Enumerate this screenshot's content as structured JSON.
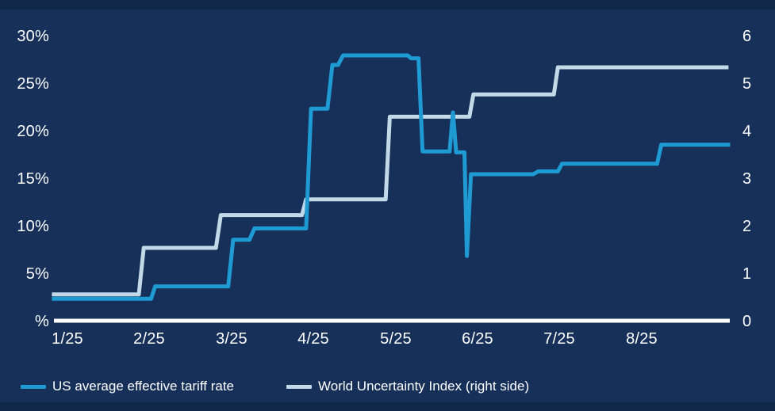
{
  "chart_data": {
    "type": "line",
    "style": "step-lines, dual y-axis, dark navy background",
    "x_axis": {
      "ticks": [
        "1/25",
        "2/25",
        "3/25",
        "4/25",
        "5/25",
        "6/25",
        "7/25",
        "8/25"
      ],
      "tick_month_positions": [
        1,
        2,
        3,
        4,
        5,
        6,
        7,
        8
      ],
      "range_months": [
        0.78,
        9.1
      ]
    },
    "left_axis": {
      "unit": "%",
      "ticks": [
        {
          "label": "30%",
          "value": 30
        },
        {
          "label": "25%",
          "value": 25
        },
        {
          "label": "20%",
          "value": 20
        },
        {
          "label": "15%",
          "value": 15
        },
        {
          "label": "10%",
          "value": 10
        },
        {
          "label": "5%",
          "value": 5
        },
        {
          "label": "%",
          "value": 0
        }
      ],
      "range": [
        0,
        30
      ]
    },
    "right_axis": {
      "ticks": [
        {
          "label": "6",
          "value": 6
        },
        {
          "label": "5",
          "value": 5
        },
        {
          "label": "4",
          "value": 4
        },
        {
          "label": "3",
          "value": 3
        },
        {
          "label": "2",
          "value": 2
        },
        {
          "label": "1",
          "value": 1
        },
        {
          "label": "0",
          "value": 0
        }
      ],
      "range": [
        0,
        6
      ]
    },
    "series": [
      {
        "name": "World Uncertainty Index (right side)",
        "axis": "right",
        "color": "#C3D9E8",
        "points": [
          [
            0.81,
            0.57
          ],
          [
            1.87,
            0.57
          ],
          [
            1.93,
            1.55
          ],
          [
            2.81,
            1.55
          ],
          [
            2.87,
            2.24
          ],
          [
            3.86,
            2.24
          ],
          [
            3.91,
            2.57
          ],
          [
            4.88,
            2.57
          ],
          [
            4.93,
            4.31
          ],
          [
            5.9,
            4.31
          ],
          [
            5.95,
            4.78
          ],
          [
            6.93,
            4.78
          ],
          [
            6.98,
            5.35
          ],
          [
            9.06,
            5.35
          ]
        ]
      },
      {
        "name": "US average effective tariff rate",
        "axis": "left",
        "color": "#1F9BD3",
        "points": [
          [
            0.81,
            2.4
          ],
          [
            2.02,
            2.4
          ],
          [
            2.07,
            3.7
          ],
          [
            2.96,
            3.7
          ],
          [
            3.02,
            8.6
          ],
          [
            3.22,
            8.6
          ],
          [
            3.28,
            9.8
          ],
          [
            3.91,
            9.8
          ],
          [
            3.97,
            22.4
          ],
          [
            4.17,
            22.4
          ],
          [
            4.23,
            27.0
          ],
          [
            4.3,
            27.0
          ],
          [
            4.36,
            28.0
          ],
          [
            5.15,
            28.0
          ],
          [
            5.19,
            27.7
          ],
          [
            5.28,
            27.7
          ],
          [
            5.33,
            17.9
          ],
          [
            5.66,
            17.9
          ],
          [
            5.7,
            22.0
          ],
          [
            5.74,
            17.8
          ],
          [
            5.84,
            17.8
          ],
          [
            5.87,
            6.9
          ],
          [
            5.92,
            15.5
          ],
          [
            6.68,
            15.5
          ],
          [
            6.74,
            15.8
          ],
          [
            6.98,
            15.8
          ],
          [
            7.03,
            16.6
          ],
          [
            8.19,
            16.6
          ],
          [
            8.24,
            18.6
          ],
          [
            9.08,
            18.6
          ]
        ]
      }
    ]
  },
  "legend": {
    "items": [
      {
        "label": "US average effective tariff rate",
        "color": "#1F9BD3"
      },
      {
        "label": "World Uncertainty Index (right side)",
        "color": "#C3D9E8"
      }
    ]
  },
  "colors": {
    "background": "#16305A",
    "header_footer_stripe": "#12284A",
    "axis_line": "#FFFFFF",
    "tick_text": "#FFFFFF",
    "tariff_line": "#1F9BD3",
    "wui_line": "#C3D9E8"
  }
}
